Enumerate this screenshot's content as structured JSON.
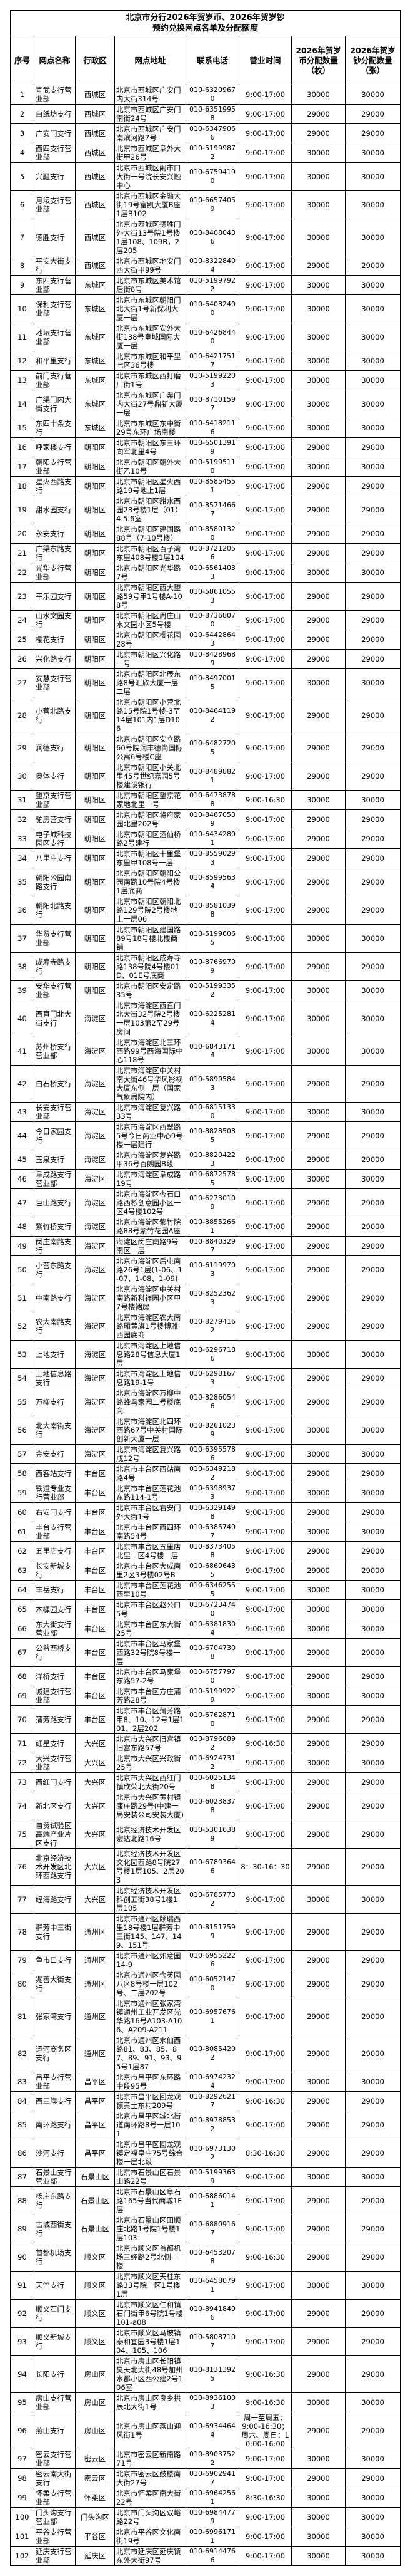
{
  "document": {
    "title_line1": "北京市分行2026年贺岁币、2026年贺岁钞",
    "title_line2": "预约兑换网点名单及分配额度"
  },
  "table": {
    "headers": [
      "序号",
      "网点名称",
      "行政区",
      "网点地址",
      "联系电话",
      "营业时间",
      "2026年贺岁币分配数量（枚）",
      "2026年贺岁钞分配数量（张）"
    ],
    "rows": [
      [
        "1",
        "宣武支行营业部",
        "西城区",
        "北京市西城区广安门内大街314号",
        "010-63209670",
        "9:00-17:00",
        "30000",
        "30000"
      ],
      [
        "2",
        "白纸坊支行",
        "西城区",
        "北京市西城区广安门南街24号",
        "010-63519958",
        "9:00-17:00",
        "29000",
        "29000"
      ],
      [
        "3",
        "广安门支行",
        "西城区",
        "北京市西城区广安门南滨河路7号",
        "010-63479066",
        "9:00-17:00",
        "29000",
        "29000"
      ],
      [
        "4",
        "西四支行营业部",
        "西城区",
        "北京市西城区阜外大街甲26号",
        "010-51999872",
        "9:00-17:00",
        "30000",
        "30000"
      ],
      [
        "5",
        "兴融支行",
        "西城区",
        "北京市西城区闹市口大街一号院长安兴融中心",
        "010-67594190",
        "9:00-17:00",
        "30000",
        "30000"
      ],
      [
        "6",
        "月坛支行营业部",
        "西城区",
        "北京市西城区金融大街19号富凯大厦B座1层B102",
        "010-66574059",
        "9:00-17:00",
        "30000",
        "30000"
      ],
      [
        "7",
        "德胜支行",
        "西城区",
        "北京市西城区德胜门外大街13号院1号楼1层108、109B，2层205",
        "010-84080436",
        "9:00-17:00",
        "30000",
        "30000"
      ],
      [
        "8",
        "平安大街支行",
        "西城区",
        "北京市西城区地安门西大街甲99号",
        "010-83228404",
        "9:00-17:00",
        "29000",
        "29000"
      ],
      [
        "9",
        "东四支行营业部",
        "东城区",
        "北京市东城区美术馆后街8号",
        "010-51997922",
        "9:00-17:00",
        "30000",
        "30000"
      ],
      [
        "10",
        "保利支行营业部",
        "东城区",
        "北京市东城区朝阳门北大街1号新保利大厦一层",
        "010-64082400",
        "9:00-17:00",
        "30000",
        "30000"
      ],
      [
        "11",
        "地坛支行营业部",
        "东城区",
        "北京市东城区安外大街138号皇城国际大厦一层",
        "010-64268440",
        "9:00-17:00",
        "30000",
        "30000"
      ],
      [
        "12",
        "和平里支行",
        "东城区",
        "北京市东城区和平里七区36号楼",
        "010-64217517",
        "9:00-17:00",
        "30000",
        "30000"
      ],
      [
        "13",
        "前门支行营业部",
        "东城区",
        "北京市东城区西打磨厂街1号",
        "010-51992203",
        "9:00-17:00",
        "30000",
        "30000"
      ],
      [
        "14",
        "广渠门内大街支行",
        "东城区",
        "北京市东城区广渠门内大街27号鼎新大厦一层",
        "010-87101597",
        "9:00-17:00",
        "30000",
        "30000"
      ],
      [
        "15",
        "东四十条支行",
        "东城区",
        "北京市东城区东中街29号东环广场南楼",
        "010-64182116",
        "9:00-17:00",
        "30000",
        "30000"
      ],
      [
        "16",
        "呼家楼支行",
        "朝阳区",
        "北京市朝阳区东三环向军北里4号",
        "010-65013919",
        "9:00-17:00",
        "29000",
        "29000"
      ],
      [
        "17",
        "朝阳支行营业部",
        "朝阳区",
        "北京市朝阳区朝外大街乙10号",
        "010-51995110",
        "9:00-17:00",
        "30000",
        "30000"
      ],
      [
        "18",
        "星火西路支行",
        "朝阳区",
        "北京市朝阳区星火西路19号地上1层",
        "010-85854551",
        "9:00-17:00",
        "29000",
        "29000"
      ],
      [
        "19",
        "甜水园支行",
        "朝阳区",
        "北京市朝阳区甜水西园23号楼1层（01）4.5.6室",
        "010-85714667",
        "9:00-17:00",
        "29000",
        "29000"
      ],
      [
        "20",
        "永安支行",
        "朝阳区",
        "北京市朝阳区建国路88号（7-10号楼）",
        "010-85801320",
        "9:00-17:00",
        "29000",
        "29000"
      ],
      [
        "21",
        "广渠东路支行",
        "朝阳区",
        "北京市朝阳区百子湾东里408号楼1层104",
        "010-87212056",
        "9:00-17:00",
        "29000",
        "29000"
      ],
      [
        "22",
        "光华支行营业部",
        "朝阳区",
        "北京市朝阳区光华路7号",
        "010-65614033",
        "9:00-17:00",
        "30000",
        "30000"
      ],
      [
        "23",
        "平乐园支行",
        "朝阳区",
        "北京市朝阳区西大望路59号甲1号楼A-108号",
        "010-58610553",
        "9:00-17:00",
        "29000",
        "29000"
      ],
      [
        "24",
        "山水文园支行",
        "朝阳区",
        "北京市朝阳区周庄山水文园小区5号楼",
        "010-87368070",
        "9:00-17:00",
        "29000",
        "29000"
      ],
      [
        "25",
        "樱花支行",
        "朝阳区",
        "北京市朝阳区樱花园28号",
        "010-64428643",
        "9:00-17:00",
        "29000",
        "29000"
      ],
      [
        "26",
        "兴化路支行",
        "朝阳区",
        "北京市朝阳区兴化路一号",
        "010-84289689",
        "9:00-17:00",
        "29000",
        "29000"
      ],
      [
        "27",
        "安慧支行营业部",
        "朝阳区",
        "北京市朝阳区北辰东路8号汇欣大厦一层二层",
        "010-84970015",
        "9:00-17:00",
        "30000",
        "30000"
      ],
      [
        "28",
        "小营北路支行",
        "朝阳区",
        "北京市朝阳区小营北路15号院1号楼-3至14层101内1层D106",
        "010-84641192",
        "9:00-17:00",
        "29000",
        "29000"
      ],
      [
        "29",
        "润德支行",
        "朝阳区",
        "北京市朝阳区安立路60号院润丰德尚国际公寓6号楼C座",
        "010-64827205",
        "9:00-17:00",
        "29000",
        "29000"
      ],
      [
        "30",
        "奥体支行",
        "朝阳区",
        "北京市朝阳区小关北里45号世纪嘉园5号楼建设银行",
        "010-84898821",
        "9:00-17:00",
        "29000",
        "29000"
      ],
      [
        "31",
        "望京支行营业部",
        "朝阳区",
        "北京市朝阳区望京花家地北里一号",
        "010-64738788",
        "9:00-16:30",
        "30000",
        "30000"
      ],
      [
        "32",
        "驼房营支行",
        "朝阳区",
        "北京市朝阳区将府家园北里202号",
        "010-84670539",
        "9:00-17:00",
        "29000",
        "29000"
      ],
      [
        "33",
        "电子城科技园区支行",
        "朝阳区",
        "北京市朝阳区酒仙桥路2号建行",
        "010-64342801",
        "9:00-17:00",
        "29000",
        "29000"
      ],
      [
        "34",
        "八里庄支行",
        "朝阳区",
        "北京市朝阳区十里堡东里甲108号一层",
        "010-85590293",
        "9:00-17:00",
        "29000",
        "29000"
      ],
      [
        "35",
        "朝阳公园南路支行",
        "朝阳区",
        "北京市朝阳区朝阳公园南路10号院4号楼1层底商",
        "010-85995634",
        "9:00-17:00",
        "29000",
        "29000"
      ],
      [
        "36",
        "朝阳北路支行",
        "朝阳区",
        "北京市朝阳区朝阳北路129号院2号楼地上一层06",
        "010-85810398",
        "9:00-17:00",
        "29000",
        "29000"
      ],
      [
        "37",
        "华贸支行营业部",
        "朝阳区",
        "北京市朝阳区建国路89号18号楼北楼商铺",
        "010-51996065",
        "9:00-17:00",
        "30000",
        "30000"
      ],
      [
        "38",
        "成寿寺路支行",
        "朝阳区",
        "北京市朝阳区成寿寺路138号院4号楼01D、01E号底商",
        "010-87669709",
        "9:00-17:00",
        "29000",
        "29000"
      ],
      [
        "39",
        "安华支行营业部",
        "朝阳区",
        "北京市朝阳区安定路35号",
        "010-51993352",
        "9:00-17:00",
        "30000",
        "30000"
      ],
      [
        "40",
        "西直门北大街支行",
        "海淀区",
        "北京市海淀区西直门北大街32号院2号楼一层103第2至29号房间",
        "010-62252814",
        "9:00-17:00",
        "30000",
        "30000"
      ],
      [
        "41",
        "苏州桥支行营业部",
        "海淀区",
        "北京市海淀区北三环西路99号西海国际中心118号",
        "010-68431714",
        "9:00-17:00",
        "30000",
        "30000"
      ],
      [
        "42",
        "白石桥支行",
        "海淀区",
        "北京市海淀区中关村南大街46号华风影视大厦东侧一层（国家气象局院内）",
        "010-58995843",
        "9:00-17:00",
        "29000",
        "29000"
      ],
      [
        "43",
        "长安支行营业部",
        "海淀区",
        "北京市海淀区复兴路33号",
        "010-68151330",
        "9:00-17:00",
        "30000",
        "30000"
      ],
      [
        "44",
        "今日家园支行",
        "海淀区",
        "北京市海淀区西翠路5号今日商业中心9号楼一层建行",
        "010-88285085",
        "9:00-17:00",
        "29000",
        "29000"
      ],
      [
        "45",
        "玉泉支行",
        "海淀区",
        "北京市海淀区复兴路甲36号百朗园B段",
        "010-88204223",
        "9:00-17:00",
        "29000",
        "29000"
      ],
      [
        "46",
        "阜成路支行营业部",
        "海淀区",
        "北京市海淀区阜成路19号",
        "010-68725785",
        "9:00-17:00",
        "30000",
        "30000"
      ],
      [
        "47",
        "巨山路支行",
        "海淀区",
        "北京市海淀区杏石口路西杉创意园小区一区4号楼102号",
        "010-62730109",
        "9:00-17:00",
        "29000",
        "29000"
      ],
      [
        "48",
        "紫竹桥支行",
        "海淀区",
        "北京市海淀区紫竹院路88号紫竹花园A座",
        "010-88552661",
        "9:00-17:00",
        "29000",
        "29000"
      ],
      [
        "49",
        "闵庄南路支行",
        "海淀区",
        "海淀区闵庄南路9号南区一层",
        "010-88403297",
        "9:00-17:00",
        "29000",
        "29000"
      ],
      [
        "50",
        "小营东路支行",
        "海淀区",
        "北京市海淀区后屯南路26号1层(1-06、1-07、1-08、1-09)",
        "010-61199703",
        "9:00-17:00",
        "29000",
        "29000"
      ],
      [
        "51",
        "中南路支行",
        "海淀区",
        "北京市海淀区中关村南路新科祥园小区甲7号楼裙房",
        "010-82523623",
        "9:00-17:00",
        "29000",
        "29000"
      ],
      [
        "52",
        "农大南路支行",
        "海淀区",
        "北京市海淀区农大南路厢黄旗1号楼博雅西园底商",
        "010-82794162",
        "9:00-17:00",
        "29000",
        "29000"
      ],
      [
        "53",
        "上地支行",
        "海淀区",
        "北京市海淀区上地信息路28号信息大厦1层",
        "010-62967186",
        "9:00-17:00",
        "30000",
        "30000"
      ],
      [
        "54",
        "上地信息路支行",
        "海淀区",
        "北京市海淀区上地信息路19-1号",
        "010-62981673",
        "9:00-17:00",
        "29000",
        "29000"
      ],
      [
        "55",
        "万柳支行",
        "海淀区",
        "北京市海淀区万柳中路蜂鸟家园二号楼底商",
        "010-82860546",
        "9:00-17:00",
        "29000",
        "29000"
      ],
      [
        "56",
        "北大南街支行",
        "海淀区",
        "北京市海淀区北四环西路67号中关村国际创新大厦一层",
        "010-82610239",
        "9:00-17:00",
        "30000",
        "30000"
      ],
      [
        "57",
        "金安支行",
        "海淀区",
        "北京市海淀区复兴路戊12号",
        "010-63955786",
        "9:00-17:00",
        "30000",
        "30000"
      ],
      [
        "58",
        "西客站支行",
        "丰台区",
        "北京市丰台区西站南路4号",
        "010-63492182",
        "9:00-17:00",
        "29000",
        "29000"
      ],
      [
        "59",
        "铁道专业支行营业部",
        "丰台区",
        "北京市丰台区莲花池东路114-1号",
        "010-63989373",
        "9:00-17:00",
        "30000",
        "30000"
      ],
      [
        "60",
        "右安门支行",
        "丰台区",
        "北京市丰台区右安门外大街1号",
        "010-63291498",
        "9:00-17:00",
        "29000",
        "29000"
      ],
      [
        "61",
        "丰台支行营业部",
        "丰台区",
        "北京市丰台区西四环南路54号",
        "010-63857407",
        "9:00-17:00",
        "30000",
        "30000"
      ],
      [
        "62",
        "五里店支行",
        "丰台区",
        "北京市丰台区五里店北里一区4号楼一层",
        "010-83734058",
        "9:00-17:00",
        "29000",
        "29000"
      ],
      [
        "63",
        "长安新城支行",
        "丰台区",
        "北京市丰台区大成南里2区3号楼02号B",
        "010-68696435",
        "9:00-17:00",
        "29000",
        "29000"
      ],
      [
        "64",
        "丰岳支行",
        "丰台区",
        "北京市丰台区莲花池西里10号",
        "010-63462555",
        "9:00-17:00",
        "30000",
        "30000"
      ],
      [
        "65",
        "木樨园支行",
        "丰台区",
        "北京市丰台区赵公口5号",
        "010-67234740",
        "9:00-17:00",
        "30000",
        "30000"
      ],
      [
        "66",
        "东大街支行营业部",
        "丰台区",
        "北京市丰台区东大街25号",
        "010-63818304",
        "9:00-17:00",
        "30000",
        "30000"
      ],
      [
        "67",
        "公益西桥支行",
        "丰台区",
        "北京市丰台区马家堡西路32号院8号楼一层",
        "010-67047308",
        "9:00-17:00",
        "29000",
        "29000"
      ],
      [
        "68",
        "洋桥支行",
        "丰台区",
        "北京市丰台区马家堡东路57-2号",
        "010-67577970",
        "9:00-17:00",
        "29000",
        "29000"
      ],
      [
        "69",
        "城建支行营业部",
        "丰台区",
        "北京市丰台区方庄蒲芳路28号",
        "010-51999229",
        "9:00-17:00",
        "30000",
        "30000"
      ],
      [
        "70",
        "蒲芳路支行",
        "丰台区",
        "北京市丰台区蒲芳路甲8、10、12号1层101、2层202",
        "010-67628710",
        "9:00-17:00",
        "29000",
        "29000"
      ],
      [
        "71",
        "红星支行",
        "大兴区",
        "北京市大兴区旧宫镇旧宫东路57号",
        "010-87966892",
        "9:00-16:30",
        "29000",
        "29000"
      ],
      [
        "72",
        "大兴支行营业部",
        "大兴区",
        "北京市大兴区兴政街25号",
        "010-69247312",
        "9:00-17:00",
        "30000",
        "30000"
      ],
      [
        "73",
        "西红门支行",
        "大兴区",
        "北京市大兴区西红门镇欣荣北大街20号",
        "010-60251348",
        "9:00-17:00",
        "29000",
        "29000"
      ],
      [
        "74",
        "新北区支行",
        "大兴区",
        "北京市大兴区黄村镇康庄路29号(中建一局安装公司安装大厦)",
        "010-60238378",
        "9:00-17:00",
        "29000",
        "29000"
      ],
      [
        "75",
        "自贸试验区高端产业片区支行",
        "大兴区",
        "北京经济技术开发区宏达北路16号",
        "010-53016389",
        "9:00-17:00",
        "29000",
        "29000"
      ],
      [
        "76",
        "北京经济技术开发区北环西路支行",
        "大兴区",
        "北京经济技术开发区文化园西路8号院27号楼1层105、2层203",
        "010-67893646",
        "8：30-16：30",
        "29000",
        "29000"
      ],
      [
        "77",
        "经海路支行",
        "大兴区",
        "北京经济技术开发区科创五街38号1楼1层105",
        "010-67857732",
        "9:00-17:00",
        "30000",
        "30000"
      ],
      [
        "78",
        "群芳中三街支行",
        "通州区",
        "北京市通州区颐瑞西里18号楼1层群芳中三街145、147、149、151号",
        "010-81517599",
        "9:00-17:00",
        "29000",
        "29000"
      ],
      [
        "79",
        "鱼市口支行",
        "通州区",
        "北京市通州区如意园14-9",
        "010-69552226",
        "9:00-17:00",
        "29000",
        "29000"
      ],
      [
        "80",
        "兆善大街支行",
        "通州区",
        "北京市通州区含英园八区8号楼一层102号、二层202号",
        "010-60521470",
        "9:00-17:00",
        "29000",
        "29000"
      ],
      [
        "81",
        "张家湾支行",
        "通州区",
        "北京市通州区张家湾镇通州工业开发区光华路16号A103-A106、A209-A211",
        "010-69576761",
        "9:00-17:00",
        "29000",
        "29000"
      ],
      [
        "82",
        "运河商务区支行",
        "通州区",
        "北京市通州区水仙西路81、83、85、87、89、91、93、95号1层87",
        "010-80854202",
        "9:00-17:00",
        "29000",
        "29000"
      ],
      [
        "83",
        "昌平支行营业部",
        "昌平区",
        "北京市昌平区东环路中段95号",
        "010-69742324",
        "9:00-17:00",
        "30000",
        "30000"
      ],
      [
        "84",
        "西三旗支行",
        "昌平区",
        "北京市昌平区回龙观镇黄土东村209号",
        "010-82926217",
        "9:00-16:30",
        "29000",
        "29000"
      ],
      [
        "85",
        "南环路支行",
        "昌平区",
        "北京市昌平区城北街道南环路8号一层101",
        "010-89788532",
        "9:00-17:00",
        "29000",
        "29000"
      ],
      [
        "86",
        "沙河支行",
        "昌平区",
        "北京市昌平区回龙观镇定福皇庄75号综合楼一层北段",
        "010-69731302",
        "8:30-16:30",
        "29000",
        "29000"
      ],
      [
        "87",
        "石景山支行营业部",
        "石景山区",
        "北京市石景山区石景山路22号",
        "010-51993639",
        "9:00-17:00",
        "30000",
        "30000"
      ],
      [
        "88",
        "杨庄东路支行",
        "石景山区",
        "北京市石景山区阜石路165号当代商城1F层",
        "010-68860141",
        "9:00-17:00",
        "29000",
        "29000"
      ],
      [
        "89",
        "古城西街支行",
        "石景山区",
        "北京市石景山区田顺庄北路1号院1号楼1层103",
        "010-68809167",
        "9:00-17:00",
        "29000",
        "29000"
      ],
      [
        "90",
        "首都机场支行",
        "顺义区",
        "北京市顺义区首都机场三经路2号北侧一楼",
        "010-64532078",
        "9:00-16:30",
        "29000",
        "29000"
      ],
      [
        "91",
        "天竺支行",
        "顺义区",
        "北京市顺义区天柱东路33号院一区1号楼1层",
        "010-64580791",
        "9:00-17:00",
        "30000",
        "30000"
      ],
      [
        "92",
        "顺义石门支行",
        "顺义区",
        "北京市顺义区仁和镇石门街甲6号院1号楼101-a08",
        "010-89418496",
        "9:00-17:00",
        "29000",
        "29000"
      ],
      [
        "93",
        "顺义新城支行",
        "顺义区",
        "北京市顺义区马坡镇泰和宜园3号楼1层104、105、106",
        "010-58087107",
        "9:00-17:00",
        "29000",
        "29000"
      ],
      [
        "94",
        "长阳支行",
        "房山区",
        "北京市房山区长阳镇昊天北大街48号加州水郡小区西公建2号106室",
        "010-81313925",
        "9:00-16:30",
        "29000",
        "29000"
      ],
      [
        "95",
        "房山支行营业部",
        "房山区",
        "北京市房山区良乡拱辰北大街1号",
        "010-89361003",
        "9:00-16:30",
        "30000",
        "30000"
      ],
      [
        "96",
        "燕山支行",
        "房山区",
        "北京市房山区燕山迎风街1号",
        "010-69344644",
        "周一至周五：9:00-16:30；周六、周日：10:00-16:00",
        "29000",
        "29000"
      ],
      [
        "97",
        "密云支行营业部",
        "密云区",
        "北京市密云区新南路71号",
        "010-89037522",
        "9:00-17:00",
        "30000",
        "30000"
      ],
      [
        "98",
        "密云南大街支行",
        "密云区",
        "北京市密云区鼓楼南大街27号",
        "010-69029417",
        "9:00-17:00",
        "29000",
        "29000"
      ],
      [
        "99",
        "怀柔支行营业部",
        "怀柔区",
        "北京市怀柔区南大街22号",
        "010-69642561",
        "8:30-16:30",
        "30000",
        "30000"
      ],
      [
        "100",
        "门头沟支行营业部",
        "门头沟区",
        "北京市门头沟区双峪路22号",
        "010-69844779",
        "9:00-17:00",
        "30000",
        "30000"
      ],
      [
        "101",
        "平谷支行营业部",
        "平谷区",
        "北京市平谷区文化南街19号",
        "010-69961711",
        "9:00-17:00",
        "30000",
        "30000"
      ],
      [
        "102",
        "延庆支行营业部",
        "延庆区",
        "北京市延庆区延庆镇东外大街97号",
        "010-69144766",
        "9:00-17:00",
        "30000",
        "30000"
      ]
    ]
  }
}
